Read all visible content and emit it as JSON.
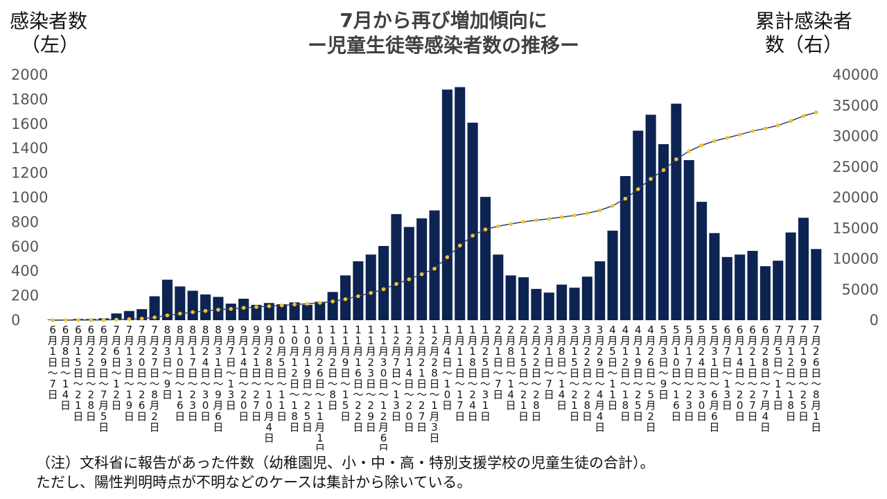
{
  "header": {
    "title_line1": "7月から再び増加傾向に",
    "title_line2": "ー児童生徒等感染者数の推移ー",
    "left_axis_title": "感染者数",
    "left_axis_sub": "（左）",
    "right_axis_title": "累計感染者",
    "right_axis_sub": "数（右）"
  },
  "notes": {
    "line1": "（注）文科省に報告があった件数（幼稚園児、小・中・高・特別支援学校の児童生徒の合計）。",
    "line2": "ただし、陽性判明時点が不明などのケースは集計から除いている。"
  },
  "colors": {
    "bar": "#0d2352",
    "line": "#2e3f6e",
    "marker": "#f2c12e"
  },
  "chart_data": {
    "type": "bar",
    "categories": [
      "6月1日～7日",
      "6月8日～14日",
      "6月15日～21日",
      "6月22日～28日",
      "6月29日～7月5日",
      "7月6日～12日",
      "7月13日～19日",
      "7月20日～26日",
      "7月27日～8月2日",
      "8月3日～9日",
      "8月10日～16日",
      "8月17日～23日",
      "8月24日～30日",
      "8月31日～9月6日",
      "9月7日～13日",
      "9月14日～20日",
      "9月21日～27日",
      "9月28日～10月4日",
      "10月5日～11日",
      "10月12日～18日",
      "10月19日～25日",
      "10月26日～11月1日",
      "11月2日～8日",
      "11月9日～15日",
      "11月16日～22日",
      "11月23日～29日",
      "11月30日～12月6日",
      "12月7日～13日",
      "12月14日～20日",
      "12月21日～27日",
      "12月28日～1月3日",
      "1月4日～10日",
      "1月11日～17日",
      "1月18日～24日",
      "1月25日～31日",
      "2月1日～7日",
      "2月8日～14日",
      "2月15日～21日",
      "2月22日～28日",
      "3月1日～7日",
      "3月8日～14日",
      "3月15日～21日",
      "3月22日～28日",
      "3月29日～4月4日",
      "4月5日～11日",
      "4月12日～18日",
      "4月19日～25日",
      "4月26日～5月2日",
      "5月3日～9日",
      "5月10日～16日",
      "5月17日～23日",
      "5月24日～30日",
      "5月31日～6月6日",
      "6月7日～13日",
      "6月14日～20日",
      "6月21日～27日",
      "6月28日～7月4日",
      "7月5日～11日",
      "7月12日～18日",
      "7月19日～25日",
      "7月26日～8月1日"
    ],
    "xlabels": [
      "6月1日～7日",
      "6月8日～14日",
      "6月15日～21日",
      "6月22日～28日",
      "6月29日～7月5日",
      "7月6日～12日",
      "7月13日～19日",
      "7月20日～26日",
      "7月27日～8月2日",
      "8月3日～9日",
      "8月10日～16日",
      "8月17日～23日",
      "8月24日～30日",
      "8月31日～9月6日",
      "9月7日～13日",
      "9月14日～20日",
      "9月21日～27日",
      "9月28日～10月4日",
      "10月5日～11日",
      "10月12日～18日",
      "10月19日～25日",
      "10月26日～11月1日",
      "11月2日～8日",
      "11月9日～15日",
      "11月16日～22日",
      "11月23日～29日",
      "11月30日～12月6日",
      "12月7日～13日",
      "12月14日～20日",
      "12月21日～27日",
      "12月28日～1月3日",
      "1月4日～10日",
      "1月11日～17日",
      "1月18日～24日",
      "1月25日～31日",
      "2月1日～7日",
      "2月8日～14日",
      "2月15日～21日",
      "2月22日～28日",
      "3月1日～7日",
      "3月8日～14日",
      "3月15日～21日",
      "3月22日～28日",
      "3月29日～4月4日",
      "4月5日～11日",
      "4月12日～18日",
      "4月19日～25日",
      "4月26日～5月2日",
      "5月3日～9日",
      "5月10日～16日",
      "5月17日～23日",
      "5月24日～30日",
      "5月31日～6月6日",
      "6月7日～13日",
      "6月14日～20日",
      "6月21日～27日",
      "6月28日～7月4日",
      "7月5日～11日",
      "7月12日～18日",
      "7月19日～25日",
      "7月26日～8月1日"
    ],
    "series": [
      {
        "name": "感染者数（左）",
        "axis": "left",
        "type": "bar",
        "values": [
          5,
          5,
          10,
          10,
          15,
          55,
          75,
          90,
          195,
          330,
          275,
          240,
          210,
          190,
          135,
          175,
          125,
          140,
          130,
          145,
          125,
          150,
          230,
          365,
          480,
          535,
          605,
          865,
          760,
          830,
          895,
          1880,
          1900,
          1610,
          1005,
          535,
          365,
          350,
          255,
          225,
          290,
          265,
          355,
          480,
          730,
          1175,
          1545,
          1675,
          1435,
          1765,
          1305,
          965,
          710,
          515,
          535,
          565,
          440,
          485,
          715,
          835,
          580
        ]
      },
      {
        "name": "累計感染者数（右）",
        "axis": "right",
        "type": "line",
        "values": [
          5,
          10,
          20,
          30,
          45,
          100,
          175,
          265,
          460,
          790,
          1065,
          1305,
          1515,
          1705,
          1840,
          2015,
          2140,
          2280,
          2410,
          2555,
          2680,
          2830,
          3060,
          3425,
          3905,
          4440,
          5045,
          5910,
          6670,
          7500,
          8395,
          10275,
          12175,
          13785,
          14790,
          15325,
          15690,
          16040,
          16295,
          16520,
          16810,
          17075,
          17430,
          17910,
          18640,
          19815,
          21360,
          23035,
          24470,
          26235,
          27540,
          28505,
          29215,
          29730,
          30265,
          30830,
          31270,
          31755,
          32470,
          33305,
          33885
        ]
      }
    ],
    "y_left": {
      "ylim": [
        0,
        2000
      ],
      "ticks": [
        0,
        200,
        400,
        600,
        800,
        1000,
        1200,
        1400,
        1600,
        1800,
        2000
      ]
    },
    "y_right": {
      "ylim": [
        0,
        40000
      ],
      "ticks": [
        0,
        5000,
        10000,
        15000,
        20000,
        25000,
        30000,
        35000,
        40000
      ]
    },
    "grid": false,
    "legend": "none"
  }
}
